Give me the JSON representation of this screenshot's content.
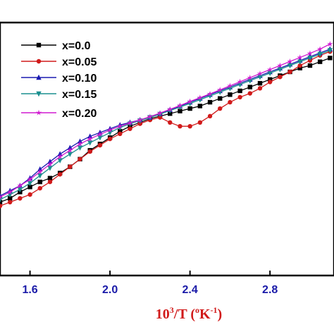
{
  "chart_data": {
    "type": "line",
    "title": "",
    "xlabel": {
      "prefix": "10",
      "prefix_sup": "3",
      "mid": "/T (",
      "unit_sup1": "o",
      "unit_mid": "K",
      "unit_sup2": "-1",
      "suffix": ")"
    },
    "ylabel": "",
    "xlim": [
      1.45,
      3.12
    ],
    "ylim": [
      0,
      1
    ],
    "x_ticks": [
      1.6,
      2.0,
      2.4,
      2.8
    ],
    "x_tick_labels": [
      "1.6",
      "2.0",
      "2.4",
      "2.8"
    ],
    "grid": false,
    "legend_position": "top-left",
    "series": [
      {
        "name": "x=0.0",
        "color": "#000000",
        "marker": "square",
        "points": [
          [
            1.45,
            0.29
          ],
          [
            1.5,
            0.305
          ],
          [
            1.55,
            0.33
          ],
          [
            1.6,
            0.35
          ],
          [
            1.65,
            0.37
          ],
          [
            1.7,
            0.385
          ],
          [
            1.75,
            0.405
          ],
          [
            1.8,
            0.43
          ],
          [
            1.85,
            0.46
          ],
          [
            1.9,
            0.495
          ],
          [
            1.95,
            0.52
          ],
          [
            2.0,
            0.545
          ],
          [
            2.05,
            0.57
          ],
          [
            2.1,
            0.59
          ],
          [
            2.15,
            0.605
          ],
          [
            2.2,
            0.62
          ],
          [
            2.25,
            0.63
          ],
          [
            2.3,
            0.64
          ],
          [
            2.35,
            0.65
          ],
          [
            2.4,
            0.66
          ],
          [
            2.45,
            0.67
          ],
          [
            2.5,
            0.685
          ],
          [
            2.55,
            0.7
          ],
          [
            2.6,
            0.715
          ],
          [
            2.65,
            0.73
          ],
          [
            2.7,
            0.745
          ],
          [
            2.75,
            0.76
          ],
          [
            2.8,
            0.775
          ],
          [
            2.85,
            0.79
          ],
          [
            2.9,
            0.805
          ],
          [
            2.95,
            0.82
          ],
          [
            3.0,
            0.83
          ],
          [
            3.05,
            0.845
          ],
          [
            3.1,
            0.86
          ]
        ]
      },
      {
        "name": "x=0.05",
        "color": "#d11a1a",
        "marker": "circle",
        "points": [
          [
            1.45,
            0.275
          ],
          [
            1.5,
            0.29
          ],
          [
            1.55,
            0.305
          ],
          [
            1.6,
            0.32
          ],
          [
            1.65,
            0.345
          ],
          [
            1.7,
            0.37
          ],
          [
            1.75,
            0.4
          ],
          [
            1.8,
            0.43
          ],
          [
            1.85,
            0.46
          ],
          [
            1.9,
            0.49
          ],
          [
            1.95,
            0.515
          ],
          [
            2.0,
            0.54
          ],
          [
            2.05,
            0.56
          ],
          [
            2.1,
            0.58
          ],
          [
            2.15,
            0.6
          ],
          [
            2.2,
            0.615
          ],
          [
            2.25,
            0.625
          ],
          [
            2.3,
            0.605
          ],
          [
            2.35,
            0.59
          ],
          [
            2.4,
            0.59
          ],
          [
            2.45,
            0.605
          ],
          [
            2.5,
            0.63
          ],
          [
            2.55,
            0.66
          ],
          [
            2.6,
            0.685
          ],
          [
            2.65,
            0.705
          ],
          [
            2.7,
            0.72
          ],
          [
            2.75,
            0.74
          ],
          [
            2.8,
            0.765
          ],
          [
            2.85,
            0.785
          ],
          [
            2.9,
            0.805
          ],
          [
            2.95,
            0.83
          ],
          [
            3.0,
            0.85
          ],
          [
            3.05,
            0.87
          ],
          [
            3.1,
            0.885
          ]
        ]
      },
      {
        "name": "x=0.10",
        "color": "#1a1ab0",
        "marker": "triangle-up",
        "points": [
          [
            1.45,
            0.315
          ],
          [
            1.5,
            0.335
          ],
          [
            1.55,
            0.355
          ],
          [
            1.6,
            0.385
          ],
          [
            1.65,
            0.42
          ],
          [
            1.7,
            0.45
          ],
          [
            1.75,
            0.48
          ],
          [
            1.8,
            0.505
          ],
          [
            1.85,
            0.53
          ],
          [
            1.9,
            0.55
          ],
          [
            1.95,
            0.565
          ],
          [
            2.0,
            0.58
          ],
          [
            2.05,
            0.595
          ],
          [
            2.1,
            0.605
          ],
          [
            2.15,
            0.615
          ],
          [
            2.2,
            0.625
          ],
          [
            2.25,
            0.64
          ],
          [
            2.3,
            0.655
          ],
          [
            2.35,
            0.67
          ],
          [
            2.4,
            0.685
          ],
          [
            2.45,
            0.7
          ],
          [
            2.5,
            0.715
          ],
          [
            2.55,
            0.73
          ],
          [
            2.6,
            0.745
          ],
          [
            2.65,
            0.76
          ],
          [
            2.7,
            0.775
          ],
          [
            2.75,
            0.79
          ],
          [
            2.8,
            0.805
          ],
          [
            2.85,
            0.82
          ],
          [
            2.9,
            0.835
          ],
          [
            2.95,
            0.85
          ],
          [
            3.0,
            0.865
          ],
          [
            3.05,
            0.88
          ],
          [
            3.1,
            0.895
          ]
        ]
      },
      {
        "name": "x=0.15",
        "color": "#1a8f8f",
        "marker": "triangle-down",
        "points": [
          [
            1.45,
            0.3
          ],
          [
            1.5,
            0.32
          ],
          [
            1.55,
            0.34
          ],
          [
            1.6,
            0.365
          ],
          [
            1.65,
            0.395
          ],
          [
            1.7,
            0.425
          ],
          [
            1.75,
            0.455
          ],
          [
            1.8,
            0.48
          ],
          [
            1.85,
            0.505
          ],
          [
            1.9,
            0.525
          ],
          [
            1.95,
            0.545
          ],
          [
            2.0,
            0.565
          ],
          [
            2.05,
            0.585
          ],
          [
            2.1,
            0.6
          ],
          [
            2.15,
            0.612
          ],
          [
            2.2,
            0.625
          ],
          [
            2.25,
            0.638
          ],
          [
            2.3,
            0.652
          ],
          [
            2.35,
            0.666
          ],
          [
            2.4,
            0.68
          ],
          [
            2.45,
            0.695
          ],
          [
            2.5,
            0.71
          ],
          [
            2.55,
            0.725
          ],
          [
            2.6,
            0.74
          ],
          [
            2.65,
            0.755
          ],
          [
            2.7,
            0.77
          ],
          [
            2.75,
            0.785
          ],
          [
            2.8,
            0.8
          ],
          [
            2.85,
            0.815
          ],
          [
            2.9,
            0.83
          ],
          [
            2.95,
            0.845
          ],
          [
            3.0,
            0.86
          ],
          [
            3.05,
            0.875
          ],
          [
            3.1,
            0.89
          ]
        ]
      },
      {
        "name": "x=0.20",
        "color": "#d11ad1",
        "marker": "star",
        "points": [
          [
            1.45,
            0.31
          ],
          [
            1.5,
            0.33
          ],
          [
            1.55,
            0.355
          ],
          [
            1.6,
            0.38
          ],
          [
            1.65,
            0.41
          ],
          [
            1.7,
            0.44
          ],
          [
            1.75,
            0.47
          ],
          [
            1.8,
            0.495
          ],
          [
            1.85,
            0.52
          ],
          [
            1.9,
            0.54
          ],
          [
            1.95,
            0.558
          ],
          [
            2.0,
            0.575
          ],
          [
            2.05,
            0.59
          ],
          [
            2.1,
            0.603
          ],
          [
            2.15,
            0.615
          ],
          [
            2.2,
            0.628
          ],
          [
            2.25,
            0.642
          ],
          [
            2.3,
            0.657
          ],
          [
            2.35,
            0.672
          ],
          [
            2.4,
            0.688
          ],
          [
            2.45,
            0.703
          ],
          [
            2.5,
            0.718
          ],
          [
            2.55,
            0.734
          ],
          [
            2.6,
            0.75
          ],
          [
            2.65,
            0.766
          ],
          [
            2.7,
            0.782
          ],
          [
            2.75,
            0.798
          ],
          [
            2.8,
            0.814
          ],
          [
            2.85,
            0.83
          ],
          [
            2.9,
            0.846
          ],
          [
            2.95,
            0.862
          ],
          [
            3.0,
            0.878
          ],
          [
            3.05,
            0.895
          ],
          [
            3.1,
            0.915
          ]
        ]
      }
    ]
  }
}
